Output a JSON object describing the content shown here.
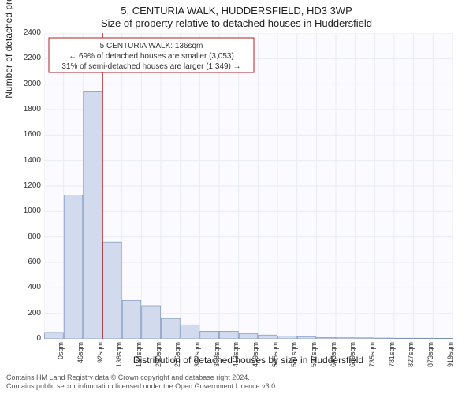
{
  "header": {
    "title_line1": "5, CENTURIA WALK, HUDDERSFIELD, HD3 3WP",
    "title_line2": "Size of property relative to detached houses in Huddersfield"
  },
  "chart": {
    "type": "bar",
    "background_color": "#fafaff",
    "grid_color": "#e9ecf3",
    "bar_fill": "#d1dbed",
    "bar_stroke": "#5773a8",
    "marker_color": "#b52222",
    "y": {
      "label": "Number of detached properties",
      "min": 0,
      "max": 2400,
      "tick_step": 200,
      "ticks": [
        0,
        200,
        400,
        600,
        800,
        1000,
        1200,
        1400,
        1600,
        1800,
        2000,
        2200,
        2400
      ]
    },
    "x": {
      "label": "Distribution of detached houses by size in Huddersfield",
      "ticks": [
        "0sqm",
        "46sqm",
        "92sqm",
        "138sqm",
        "184sqm",
        "230sqm",
        "276sqm",
        "322sqm",
        "368sqm",
        "413sqm",
        "459sqm",
        "505sqm",
        "551sqm",
        "597sqm",
        "643sqm",
        "689sqm",
        "735sqm",
        "781sqm",
        "827sqm",
        "873sqm",
        "919sqm"
      ]
    },
    "bars": [
      50,
      1130,
      1940,
      760,
      300,
      260,
      160,
      110,
      60,
      60,
      40,
      30,
      20,
      15,
      10,
      8,
      7,
      6,
      5,
      5,
      4
    ],
    "marker_bin": 3,
    "annotation": {
      "line1": "5 CENTURIA WALK: 136sqm",
      "line2": "← 69% of detached houses are smaller (3,053)",
      "line3": "31% of semi-detached houses are larger (1,349) →"
    }
  },
  "footer": {
    "line1": "Contains HM Land Registry data © Crown copyright and database right 2024.",
    "line2": "Contains public sector information licensed under the Open Government Licence v3.0."
  }
}
